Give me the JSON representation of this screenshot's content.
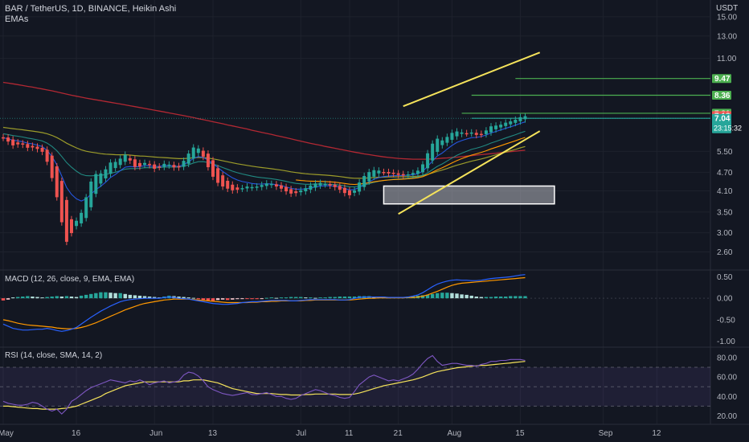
{
  "header": {
    "title": "BAR / TetherUS, 1D, BINANCE, Heikin Ashi",
    "indicator": "EMAs",
    "currency": "USDT"
  },
  "panes": {
    "macd_label": "MACD (12, 26, close, 9, EMA, EMA)",
    "rsi_label": "RSI (14, close, SMA, 14, 2)"
  },
  "colors": {
    "background": "#131722",
    "up": "#26a69a",
    "down": "#ef5350",
    "trendline": "#f5e35b",
    "level_line": "#4caf50",
    "ema_fast": "#2962ff",
    "ema_mid": "#26a69a",
    "ema_slow_yellow": "#9c9c2a",
    "ema_200": "#b22833",
    "ema_orange": "#ff9800",
    "rsi_line": "#7e57c2",
    "rsi_ma": "#f5e35b"
  },
  "chart_data": [
    {
      "type": "candlestick",
      "title": "BAR / TetherUS, 1D, BINANCE, Heikin Ashi",
      "y_scale": "log",
      "ylim": [
        2.3,
        17
      ],
      "y_ticks": [
        "15.00",
        "13.00",
        "11.00",
        "5.50",
        "4.70",
        "4.10",
        "3.50",
        "3.00",
        "2.60"
      ],
      "x_ticks": [
        {
          "label": "May",
          "index": 0
        },
        {
          "label": "16",
          "index": 15
        },
        {
          "label": "Jun",
          "index": 31
        },
        {
          "label": "13",
          "index": 43
        },
        {
          "label": "Jul",
          "index": 61
        },
        {
          "label": "11",
          "index": 71
        },
        {
          "label": "21",
          "index": 81
        },
        {
          "label": "Aug",
          "index": 92
        },
        {
          "label": "15",
          "index": 106
        },
        {
          "label": "Sep",
          "index": 123
        },
        {
          "label": "12",
          "index": 134
        }
      ],
      "closes": [
        6.05,
        5.85,
        5.7,
        5.85,
        5.75,
        5.6,
        5.7,
        5.55,
        5.45,
        4.9,
        4.3,
        3.7,
        3.0,
        2.7,
        3.15,
        3.35,
        3.55,
        4.1,
        4.55,
        4.7,
        4.65,
        4.9,
        5.15,
        5.05,
        5.3,
        5.4,
        5.0,
        4.85,
        4.95,
        5.1,
        4.9,
        4.8,
        4.95,
        5.05,
        4.95,
        4.85,
        4.9,
        5.25,
        5.5,
        5.75,
        5.55,
        5.15,
        4.75,
        4.45,
        4.3,
        4.2,
        4.15,
        4.1,
        4.15,
        4.2,
        4.25,
        4.2,
        4.25,
        4.3,
        4.35,
        4.3,
        4.2,
        4.15,
        4.05,
        4.0,
        4.05,
        4.15,
        4.2,
        4.3,
        4.35,
        4.35,
        4.3,
        4.25,
        4.2,
        4.1,
        4.0,
        3.95,
        4.2,
        4.45,
        4.65,
        4.75,
        4.8,
        4.75,
        4.7,
        4.65,
        4.65,
        4.6,
        4.6,
        4.65,
        4.7,
        4.8,
        5.1,
        5.6,
        5.95,
        6.1,
        5.9,
        6.25,
        6.35,
        6.4,
        6.3,
        6.3,
        6.35,
        6.15,
        6.3,
        6.5,
        6.7,
        6.65,
        6.75,
        6.85,
        6.9,
        7.0,
        7.15,
        7.15
      ],
      "ema_200": [
        9.2,
        9.15,
        9.1,
        9.05,
        8.99,
        8.93,
        8.88,
        8.82,
        8.76,
        8.7,
        8.64,
        8.57,
        8.5,
        8.43,
        8.36,
        8.3,
        8.24,
        8.18,
        8.13,
        8.08,
        8.03,
        7.98,
        7.93,
        7.88,
        7.83,
        7.78,
        7.73,
        7.68,
        7.63,
        7.58,
        7.53,
        7.48,
        7.43,
        7.38,
        7.33,
        7.28,
        7.23,
        7.18,
        7.13,
        7.08,
        7.02,
        6.97,
        6.92,
        6.86,
        6.81,
        6.76,
        6.7,
        6.65,
        6.6,
        6.55,
        6.5,
        6.44,
        6.39,
        6.34,
        6.29,
        6.24,
        6.19,
        6.14,
        6.09,
        6.04,
        5.99,
        5.94,
        5.89,
        5.84,
        5.8,
        5.76,
        5.71,
        5.67,
        5.63,
        5.59,
        5.55,
        5.51,
        5.47,
        5.44,
        5.4,
        5.37,
        5.34,
        5.31,
        5.28,
        5.26,
        5.24,
        5.22,
        5.21,
        5.2,
        5.19,
        5.19,
        5.19,
        5.19,
        5.2,
        5.21,
        5.23,
        5.24,
        5.26,
        5.27,
        5.29,
        5.31,
        5.33,
        5.35,
        5.37,
        5.39,
        5.41,
        5.43,
        5.45,
        5.47,
        5.49,
        5.51,
        5.53,
        5.55
      ],
      "trendline_upper": {
        "from": [
          82,
          7.7
        ],
        "to": [
          110,
          11.5
        ]
      },
      "trendline_lower": {
        "from": [
          81,
          3.45
        ],
        "to": [
          110,
          6.4
        ]
      },
      "demand_zone": {
        "index_start": 78,
        "index_end": 113,
        "price_low": 3.72,
        "price_high": 4.25
      },
      "levels": [
        {
          "value": 9.47,
          "label": "9.47",
          "color": "#4caf50"
        },
        {
          "value": 8.36,
          "label": "8.36",
          "color": "#4caf50"
        },
        {
          "value": 7.31,
          "label": "7.31",
          "color": "#4caf50"
        },
        {
          "value": 7.18,
          "label": "7.18",
          "color": "#ef5350"
        },
        {
          "value": 7.04,
          "label": "7.04",
          "color": "#26a69a",
          "countdown": "23:15:32"
        }
      ]
    },
    {
      "type": "histogram+line",
      "title": "MACD (12, 26, close, 9, EMA, EMA)",
      "ylim": [
        -1.1,
        0.62
      ],
      "y_ticks": [
        "0.50",
        "0.00",
        "-0.50",
        "-1.00"
      ],
      "histogram": [
        -0.05,
        -0.03,
        0.02,
        0.03,
        0.04,
        0.05,
        0.04,
        0.03,
        0.02,
        0.03,
        0.04,
        0.05,
        0.04,
        0.05,
        0.04,
        0.03,
        0.06,
        0.08,
        0.1,
        0.12,
        0.14,
        0.14,
        0.13,
        0.12,
        0.12,
        0.1,
        0.08,
        0.07,
        0.06,
        0.05,
        0.04,
        0.03,
        0.02,
        0.04,
        0.06,
        0.05,
        0.04,
        0.03,
        0.02,
        0.01,
        -0.02,
        -0.04,
        -0.05,
        -0.06,
        -0.04,
        -0.03,
        -0.04,
        -0.03,
        -0.02,
        -0.01,
        -0.01,
        -0.02,
        -0.02,
        -0.01,
        0.01,
        0.02,
        0.01,
        0.02,
        0.02,
        0.03,
        0.03,
        0.03,
        0.02,
        0.02,
        0.01,
        0.02,
        0.02,
        0.03,
        0.03,
        0.04,
        0.04,
        0.04,
        0.04,
        0.05,
        0.05,
        0.05,
        0.04,
        0.04,
        0.04,
        0.03,
        0.03,
        0.03,
        0.03,
        0.04,
        0.05,
        0.06,
        0.07,
        0.08,
        0.1,
        0.12,
        0.13,
        0.13,
        0.12,
        0.11,
        0.09,
        0.08,
        0.06,
        0.04,
        0.03,
        0.03,
        0.03,
        0.04,
        0.04,
        0.04,
        0.05,
        0.05,
        0.05,
        0.05
      ],
      "macd": [
        -0.6,
        -0.65,
        -0.7,
        -0.72,
        -0.74,
        -0.74,
        -0.73,
        -0.72,
        -0.72,
        -0.7,
        -0.72,
        -0.75,
        -0.77,
        -0.75,
        -0.72,
        -0.68,
        -0.6,
        -0.52,
        -0.44,
        -0.37,
        -0.3,
        -0.24,
        -0.18,
        -0.13,
        -0.08,
        -0.05,
        -0.03,
        -0.02,
        -0.01,
        0.0,
        0.0,
        0.0,
        0.0,
        0.02,
        0.03,
        0.02,
        0.0,
        -0.01,
        -0.02,
        -0.04,
        -0.06,
        -0.08,
        -0.1,
        -0.12,
        -0.13,
        -0.14,
        -0.14,
        -0.13,
        -0.12,
        -0.1,
        -0.09,
        -0.08,
        -0.08,
        -0.07,
        -0.06,
        -0.05,
        -0.05,
        -0.05,
        -0.05,
        -0.06,
        -0.06,
        -0.05,
        -0.04,
        -0.03,
        -0.03,
        -0.03,
        -0.03,
        -0.03,
        -0.03,
        -0.04,
        -0.04,
        -0.03,
        0.0,
        0.02,
        0.03,
        0.03,
        0.03,
        0.03,
        0.03,
        0.02,
        0.02,
        0.02,
        0.02,
        0.03,
        0.05,
        0.08,
        0.13,
        0.2,
        0.27,
        0.33,
        0.37,
        0.4,
        0.42,
        0.43,
        0.42,
        0.42,
        0.41,
        0.41,
        0.42,
        0.44,
        0.46,
        0.47,
        0.48,
        0.49,
        0.5,
        0.52,
        0.54,
        0.55
      ],
      "signal": [
        -0.5,
        -0.52,
        -0.55,
        -0.58,
        -0.6,
        -0.62,
        -0.63,
        -0.64,
        -0.65,
        -0.66,
        -0.67,
        -0.69,
        -0.7,
        -0.71,
        -0.71,
        -0.7,
        -0.68,
        -0.65,
        -0.61,
        -0.57,
        -0.52,
        -0.47,
        -0.42,
        -0.37,
        -0.32,
        -0.27,
        -0.23,
        -0.19,
        -0.15,
        -0.12,
        -0.1,
        -0.08,
        -0.06,
        -0.04,
        -0.03,
        -0.02,
        -0.02,
        -0.02,
        -0.02,
        -0.03,
        -0.04,
        -0.05,
        -0.06,
        -0.07,
        -0.08,
        -0.09,
        -0.1,
        -0.1,
        -0.1,
        -0.1,
        -0.1,
        -0.09,
        -0.09,
        -0.08,
        -0.08,
        -0.07,
        -0.07,
        -0.06,
        -0.06,
        -0.06,
        -0.06,
        -0.06,
        -0.05,
        -0.05,
        -0.04,
        -0.04,
        -0.04,
        -0.04,
        -0.04,
        -0.04,
        -0.04,
        -0.04,
        -0.03,
        -0.02,
        -0.01,
        0.0,
        0.0,
        0.01,
        0.01,
        0.01,
        0.01,
        0.01,
        0.01,
        0.02,
        0.02,
        0.03,
        0.05,
        0.08,
        0.12,
        0.16,
        0.21,
        0.26,
        0.3,
        0.33,
        0.35,
        0.36,
        0.37,
        0.38,
        0.39,
        0.4,
        0.41,
        0.42,
        0.43,
        0.44,
        0.45,
        0.46,
        0.47,
        0.48
      ]
    },
    {
      "type": "line",
      "title": "RSI (14, close, SMA, 14, 2)",
      "ylim": [
        13,
        89
      ],
      "y_ticks": [
        "80.00",
        "60.00",
        "40.00",
        "20.00"
      ],
      "band": {
        "upper": 70,
        "lower": 30
      },
      "rsi": [
        35,
        33,
        32,
        31,
        31,
        32,
        34,
        33,
        30,
        27,
        25,
        27,
        22,
        27,
        35,
        38,
        42,
        46,
        49,
        51,
        53,
        55,
        57,
        56,
        55,
        54,
        56,
        55,
        57,
        55,
        52,
        54,
        55,
        56,
        54,
        55,
        56,
        62,
        65,
        64,
        61,
        56,
        50,
        47,
        45,
        43,
        42,
        41,
        42,
        43,
        44,
        42,
        42,
        43,
        44,
        42,
        40,
        40,
        38,
        37,
        38,
        41,
        43,
        45,
        47,
        46,
        44,
        42,
        41,
        39,
        38,
        39,
        45,
        52,
        56,
        60,
        62,
        60,
        58,
        56,
        57,
        56,
        58,
        60,
        63,
        68,
        74,
        79,
        82,
        76,
        72,
        73,
        74,
        74,
        73,
        72,
        72,
        71,
        73,
        74,
        76,
        76,
        77,
        77,
        78,
        78,
        78,
        77
      ],
      "rsi_ma": [
        30,
        30,
        29.5,
        29,
        28.5,
        28,
        27.5,
        27.5,
        27,
        27,
        27,
        27,
        27.5,
        28,
        29,
        30,
        32,
        34,
        36,
        38,
        40,
        43,
        45,
        47,
        49,
        51,
        52,
        53,
        54,
        55,
        55,
        55,
        55,
        55,
        55,
        55,
        55,
        56,
        56,
        57,
        57,
        57,
        56,
        55,
        54,
        52,
        50,
        48,
        47,
        46,
        45,
        44,
        43,
        43,
        43,
        43,
        42.5,
        42,
        42,
        41.5,
        41.5,
        41.5,
        42,
        42,
        42.5,
        42.5,
        42.5,
        42.5,
        42.5,
        42,
        42,
        42,
        42.5,
        43.5,
        45,
        46.5,
        48,
        49.5,
        51,
        52,
        53,
        54,
        55,
        56,
        57,
        58.5,
        60,
        62,
        64,
        65.5,
        66.5,
        67.5,
        68.5,
        69.5,
        70,
        70.5,
        71,
        71.5,
        72,
        72,
        72.5,
        73,
        73.5,
        74,
        74.5,
        75,
        75.5,
        76
      ]
    }
  ]
}
